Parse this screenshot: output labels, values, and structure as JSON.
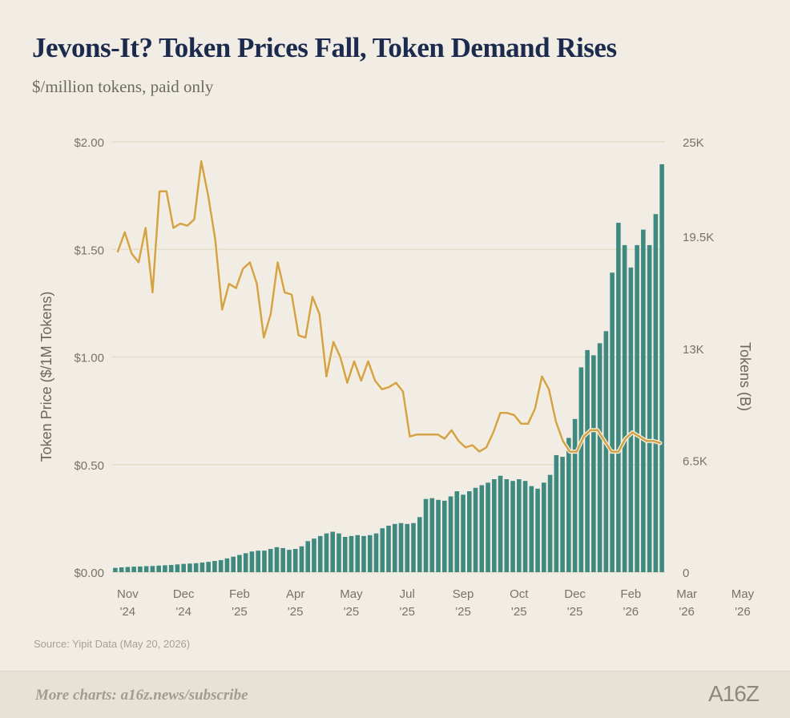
{
  "header": {
    "title": "Jevons-It? Token Prices Fall, Token Demand Rises",
    "subtitle": "$/million tokens, paid only"
  },
  "footer": {
    "source": "Source: Yipit Data (May 20, 2026)",
    "more_charts": "More charts: a16z.news/subscribe",
    "logo": "A16Z"
  },
  "colors": {
    "bar": "#3f8a80",
    "line": "#d4a349",
    "line_halo": "#f6efdd",
    "grid": "#e3dcc8",
    "axis_text": "#77736b"
  },
  "chart_data": {
    "type": "bar+line",
    "title": "Jevons-It? Token Prices Fall, Token Demand Rises",
    "subtitle": "$/million tokens, paid only",
    "left_axis": {
      "label": "Token Price ($/1M Tokens)",
      "range": [
        0,
        2
      ],
      "ticks": [
        0,
        0.5,
        1.0,
        1.5,
        2.0
      ],
      "tick_labels": [
        "$0.00",
        "$0.50",
        "$1.00",
        "$1.50",
        "$2.00"
      ]
    },
    "right_axis": {
      "label": "Tokens (B)",
      "range": [
        0,
        25000
      ],
      "ticks": [
        0,
        6500,
        13000,
        19500,
        25000
      ],
      "tick_labels": [
        "0",
        "6.5K",
        "13K",
        "19.5K",
        "25K"
      ]
    },
    "x_axis": {
      "labels": [
        {
          "month": "Nov",
          "year": "'24",
          "week": 2
        },
        {
          "month": "Dec",
          "year": "'24",
          "week": 11
        },
        {
          "month": "Feb",
          "year": "'25",
          "week": 20
        },
        {
          "month": "Apr",
          "year": "'25",
          "week": 29
        },
        {
          "month": "May",
          "year": "'25",
          "week": 38
        },
        {
          "month": "Jul",
          "year": "'25",
          "week": 47
        },
        {
          "month": "Sep",
          "year": "'25",
          "week": 56
        },
        {
          "month": "Oct",
          "year": "'25",
          "week": 65
        },
        {
          "month": "Dec",
          "year": "'25",
          "week": 74
        },
        {
          "month": "Feb",
          "year": "'26",
          "week": 83
        },
        {
          "month": "Mar",
          "year": "'26",
          "week": 92
        },
        {
          "month": "May",
          "year": "'26",
          "week": 101
        }
      ]
    },
    "grid": true,
    "series": [
      {
        "name": "Tokens (B)",
        "type": "bar",
        "axis": "right",
        "values": [
          250,
          280,
          300,
          320,
          330,
          350,
          360,
          380,
          400,
          420,
          450,
          480,
          500,
          520,
          560,
          600,
          650,
          700,
          800,
          900,
          1000,
          1100,
          1200,
          1250,
          1250,
          1350,
          1450,
          1400,
          1300,
          1350,
          1500,
          1800,
          1950,
          2100,
          2250,
          2350,
          2250,
          2050,
          2100,
          2150,
          2100,
          2150,
          2250,
          2550,
          2700,
          2800,
          2850,
          2800,
          2850,
          3200,
          4250,
          4300,
          4200,
          4150,
          4400,
          4700,
          4500,
          4700,
          4900,
          5050,
          5200,
          5400,
          5600,
          5400,
          5300,
          5400,
          5300,
          5000,
          4850,
          5200,
          5650,
          6800,
          6700,
          7800,
          8900,
          11900,
          12900,
          12600,
          13300,
          14000,
          17400,
          20300,
          19000,
          17700,
          19000,
          19900,
          19000,
          20800,
          23700
        ]
      },
      {
        "name": "Token Price ($/1M Tokens)",
        "type": "line",
        "axis": "left",
        "values": [
          1.49,
          1.58,
          1.48,
          1.44,
          1.6,
          1.3,
          1.77,
          1.77,
          1.6,
          1.62,
          1.61,
          1.64,
          1.91,
          1.75,
          1.55,
          1.22,
          1.34,
          1.32,
          1.41,
          1.44,
          1.34,
          1.09,
          1.2,
          1.44,
          1.3,
          1.29,
          1.1,
          1.09,
          1.28,
          1.2,
          0.91,
          1.07,
          1.0,
          0.88,
          0.98,
          0.89,
          0.98,
          0.89,
          0.85,
          0.86,
          0.88,
          0.84,
          0.63,
          0.64,
          0.64,
          0.64,
          0.64,
          0.62,
          0.66,
          0.61,
          0.58,
          0.59,
          0.56,
          0.58,
          0.65,
          0.74,
          0.74,
          0.73,
          0.69,
          0.69,
          0.76,
          0.91,
          0.85,
          0.7,
          0.61,
          0.56,
          0.56,
          0.63,
          0.66,
          0.66,
          0.61,
          0.56,
          0.56,
          0.62,
          0.65,
          0.63,
          0.61,
          0.61,
          0.6
        ]
      }
    ]
  }
}
